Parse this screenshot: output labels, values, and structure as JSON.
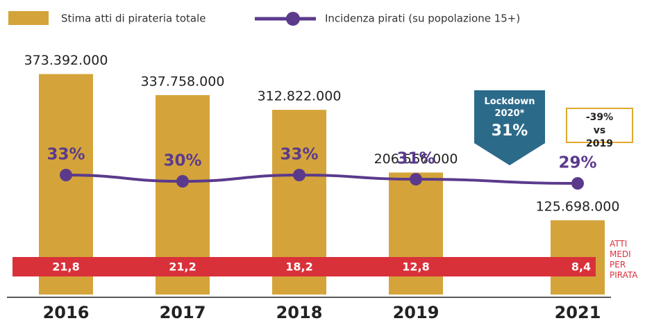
{
  "chart_data": {
    "type": "bar",
    "categories": [
      "2016",
      "2017",
      "2018",
      "2019",
      "2021"
    ],
    "series": [
      {
        "name": "Stima atti di pirateria totale",
        "color": "#d4a43a",
        "values": [
          373392000,
          337758000,
          312822000,
          206566000,
          125698000
        ],
        "value_labels": [
          "373.392.000",
          "337.758.000",
          "312.822.000",
          "206.566.000",
          "125.698.000"
        ]
      },
      {
        "name": "Incidenza pirati (su popolazione 15+)",
        "color": "#5b3a8c",
        "type": "line",
        "axis": "y2",
        "values": [
          33,
          30,
          33,
          31,
          29
        ],
        "value_labels": [
          "33%",
          "30%",
          "33%",
          "31%",
          "29%"
        ]
      }
    ],
    "ylim": [
      0,
      400000000
    ],
    "y2lim": [
      0,
      100
    ],
    "average_acts": {
      "name": "ATTI MEDI PER PIRATA",
      "color": "#d9313a",
      "values": [
        21.8,
        21.2,
        18.2,
        12.8,
        8.4
      ],
      "value_labels": [
        "21,8",
        "21,2",
        "18,2",
        "12,8",
        "8,4"
      ]
    },
    "lockdown": {
      "label": "Lockdown 2020*",
      "value": 31,
      "value_label": "31%",
      "color": "#2c6a8a"
    },
    "change_note": "-39% vs 2019"
  }
}
